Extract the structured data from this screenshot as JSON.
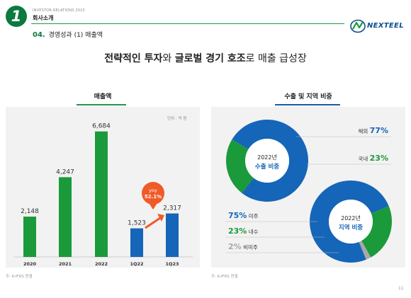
{
  "header": {
    "badge_number": "1",
    "ir_label": "INVESTOR RELATIONS 2023",
    "company_intro": "회사소개",
    "section_number": "04.",
    "section_title": "경영성과 (1) 매출액",
    "logo_text": "NEXTEEL"
  },
  "headline": {
    "part1": "전략적인 투자",
    "part2": "와 ",
    "part3": "글로벌 경기 호조",
    "part4": "로 매출 급성장"
  },
  "left_panel": {
    "title": "매출액",
    "unit": "단위 : 억 원",
    "note": "주: K-IFRS 연결"
  },
  "right_panel": {
    "title": "수출 및 지역 비중",
    "note": "주: K-IFRS 연결"
  },
  "page_number": "11",
  "colors": {
    "green": "#1a9a3a",
    "blue": "#1565b8",
    "gray": "#a8a8a8",
    "accent_green": "#0a7a3e",
    "badge_orange": "#f05a28"
  },
  "chart_data": [
    {
      "type": "bar",
      "title": "매출액",
      "categories": [
        "2020",
        "2021",
        "2022",
        "1Q22",
        "1Q23"
      ],
      "values": [
        2148,
        4247,
        6684,
        1523,
        2317
      ],
      "value_labels": [
        "2,148",
        "4,247",
        "6,684",
        "1,523",
        "2,317"
      ],
      "bar_colors": [
        "#1a9a3a",
        "#1a9a3a",
        "#1a9a3a",
        "#1565b8",
        "#1565b8"
      ],
      "ylim": [
        0,
        7200
      ],
      "annotation": {
        "line1": "yoy",
        "line2": "52.1%"
      }
    },
    {
      "type": "pie",
      "title": "2022년 수출 비중",
      "center_line1": "2022년",
      "center_line2": "수출 비중",
      "slices": [
        {
          "label": "해외",
          "value": 77,
          "value_label": "77%",
          "color": "#1565b8"
        },
        {
          "label": "국내",
          "value": 23,
          "value_label": "23%",
          "color": "#1a9a3a"
        }
      ]
    },
    {
      "type": "pie",
      "title": "2022년 지역 비중",
      "center_line1": "2022년",
      "center_line2": "지역 비중",
      "slices": [
        {
          "label": "미주",
          "value": 75,
          "value_label": "75%",
          "color": "#1565b8"
        },
        {
          "label": "내수",
          "value": 23,
          "value_label": "23%",
          "color": "#1a9a3a"
        },
        {
          "label": "비미주",
          "value": 2,
          "value_label": "2%",
          "color": "#a8a8a8"
        }
      ]
    }
  ]
}
